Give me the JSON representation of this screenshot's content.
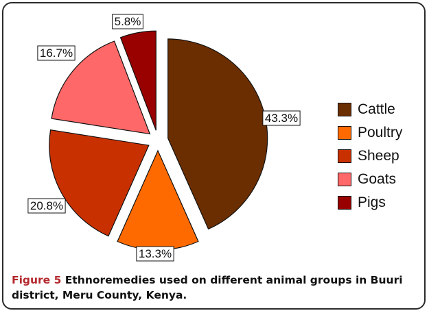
{
  "chart_data": {
    "type": "pie",
    "categories": [
      "Cattle",
      "Poultry",
      "Sheep",
      "Goats",
      "Pigs"
    ],
    "values": [
      43.3,
      13.3,
      20.8,
      16.7,
      5.8
    ],
    "data_labels": [
      "43.3%",
      "13.3%",
      "20.8%",
      "16.7%",
      "5.8%"
    ],
    "colors": [
      "#6b2e00",
      "#ff6a00",
      "#c93000",
      "#ff6868",
      "#990000"
    ],
    "exploded": true,
    "legend_position": "right"
  },
  "caption": {
    "label": "Figure 5",
    "text": "Ethnoremedies used on different animal groups in Buuri district, Meru County, Kenya."
  }
}
